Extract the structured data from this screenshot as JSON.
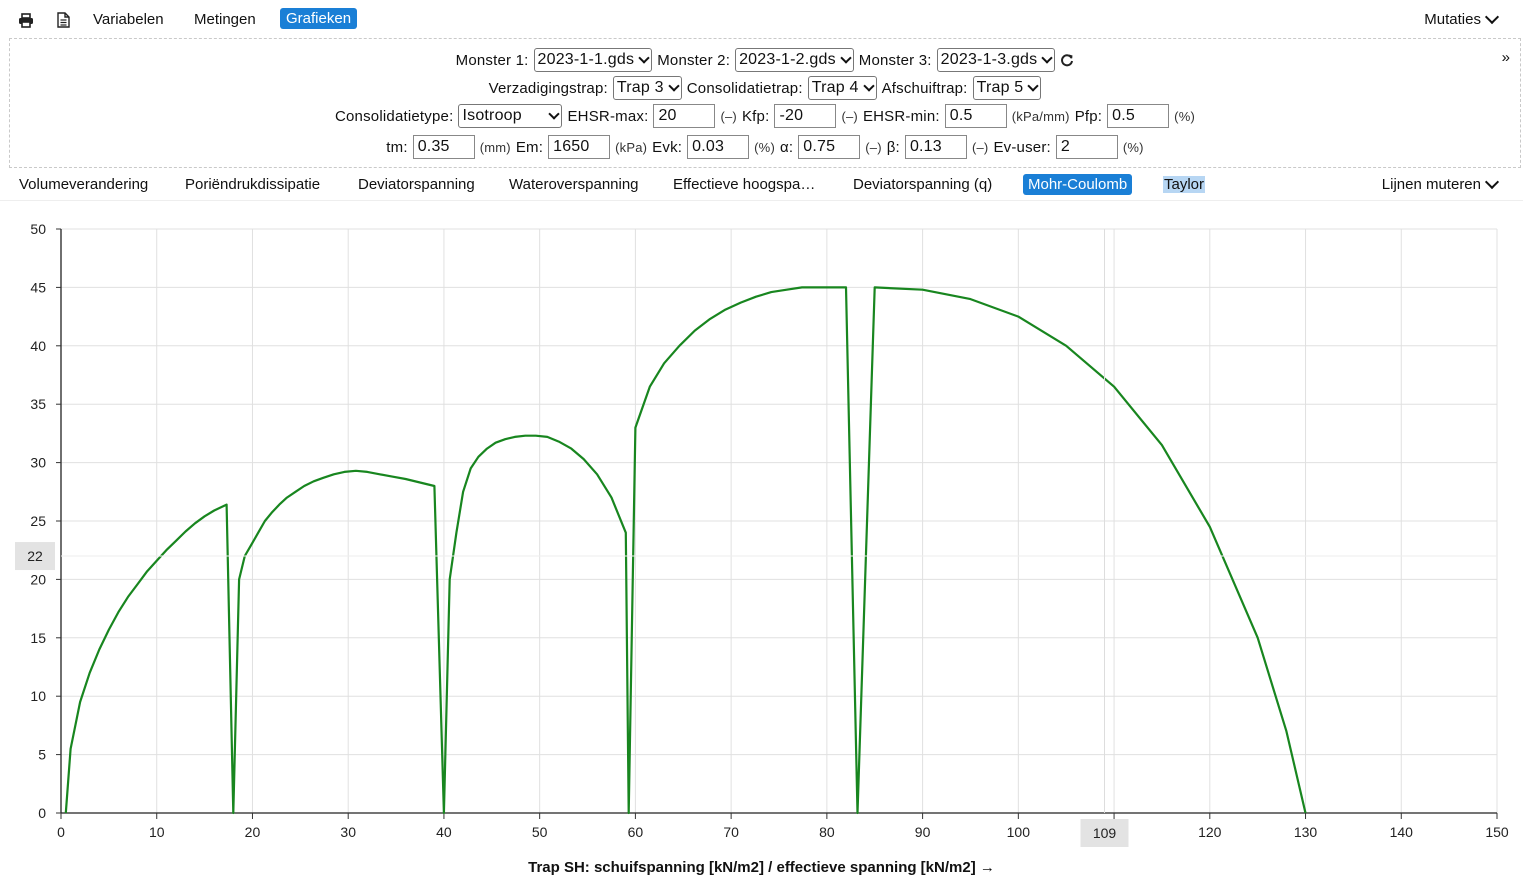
{
  "toolbar": {
    "print_icon": "printer-icon",
    "doc_icon": "document-icon",
    "links": [
      "Variabelen",
      "Metingen",
      "Grafieken"
    ],
    "active": "Grafieken",
    "mutaties": "Mutaties"
  },
  "params": {
    "monster1_label": "Monster 1:",
    "monster1": "2023-1-1.gds",
    "monster2_label": "Monster 2:",
    "monster2": "2023-1-2.gds",
    "monster3_label": "Monster 3:",
    "monster3": "2023-1-3.gds",
    "verzadiging_label": "Verzadigingstrap:",
    "verzadiging": "Trap 3",
    "consolidatie_label": "Consolidatietrap:",
    "consolidatie": "Trap 4",
    "afschuif_label": "Afschuiftrap:",
    "afschuif": "Trap 5",
    "consolidatietype_label": "Consolidatietype:",
    "consolidatietype": "Isotroop",
    "ehsrmax_label": "EHSR-max:",
    "ehsrmax": "20",
    "ehsrmax_unit": "(–)",
    "kfp_label": "Kfp:",
    "kfp": "-20",
    "kfp_unit": "(–)",
    "ehsrmin_label": "EHSR-min:",
    "ehsrmin": "0.5",
    "ehsrmin_unit": "(kPa/mm)",
    "pfp_label": "Pfp:",
    "pfp": "0.5",
    "pfp_unit": "(%)",
    "tm_label": "tm:",
    "tm": "0.35",
    "tm_unit": "(mm)",
    "em_label": "Em:",
    "em": "1650",
    "em_unit": "(kPa)",
    "evk_label": "Evk:",
    "evk": "0.03",
    "evk_unit": "(%)",
    "alpha_label": "α:",
    "alpha": "0.75",
    "alpha_unit": "(–)",
    "beta_label": "β:",
    "beta": "0.13",
    "beta_unit": "(–)",
    "evuser_label": "Ev-user:",
    "evuser": "2",
    "evuser_unit": "(%)",
    "collapse": "»"
  },
  "tabs": [
    "Volumeverandering",
    "Poriëndrukdissipatie",
    "Deviatorspanning",
    "Wateroverspanning",
    "Effectieve hoogspa…",
    "Deviatorspanning (q)",
    "Mohr-Coulomb",
    "Taylor"
  ],
  "active_tab": "Mohr-Coulomb",
  "lijnen": "Lijnen muteren",
  "colors": {
    "accent": "#1a7fd6",
    "line": "#18861f"
  },
  "chart_data": {
    "type": "line",
    "xlabel": "Trap SH: schuifspanning [kN/m2] / effectieve spanning [kN/m2] →",
    "xlim": [
      0,
      150
    ],
    "ylim": [
      0,
      50
    ],
    "xticks": [
      0,
      10,
      20,
      30,
      40,
      50,
      60,
      70,
      80,
      90,
      100,
      110,
      120,
      130,
      140,
      150
    ],
    "yticks": [
      0,
      5,
      10,
      15,
      20,
      25,
      30,
      35,
      40,
      45,
      50
    ],
    "grid": true,
    "crosshair": {
      "x": 109,
      "y": 22
    },
    "series": [
      {
        "color": "#18861f",
        "x": [
          0.5,
          1,
          2,
          3,
          4,
          5,
          6,
          7,
          8,
          9,
          10,
          11,
          12,
          13,
          14,
          15,
          16,
          17.3,
          18,
          18.6,
          19.2,
          19.9,
          20.6,
          21.3,
          22.0,
          22.8,
          23.6,
          24.5,
          25.4,
          26.4,
          27.4,
          28.5,
          29.6,
          30.8,
          32.0,
          33.3,
          34.6,
          36.0,
          37.5,
          39.0,
          40.0,
          40.6,
          41.3,
          42.0,
          42.8,
          43.6,
          44.5,
          45.4,
          46.4,
          47.4,
          48.5,
          49.6,
          50.8,
          52.0,
          53.3,
          54.6,
          56.0,
          57.5,
          59.0,
          59.3,
          60.0,
          61.5,
          63.0,
          64.6,
          66.2,
          67.8,
          69.4,
          71.0,
          72.6,
          74.2,
          75.8,
          77.4,
          79.0,
          80.6,
          82.0,
          83.2,
          85,
          90,
          95,
          100,
          105,
          110,
          115,
          120,
          125,
          128,
          130
        ],
        "y": [
          0,
          5.5,
          9.5,
          12,
          14,
          15.7,
          17.2,
          18.5,
          19.6,
          20.7,
          21.6,
          22.5,
          23.3,
          24.1,
          24.8,
          25.4,
          25.9,
          26.4,
          0,
          20,
          22,
          23,
          24,
          25,
          25.7,
          26.4,
          27,
          27.5,
          28,
          28.4,
          28.7,
          29,
          29.2,
          29.3,
          29.2,
          29,
          28.8,
          28.6,
          28.3,
          28,
          0,
          20,
          24,
          27.5,
          29.5,
          30.5,
          31.2,
          31.7,
          32,
          32.2,
          32.3,
          32.3,
          32.2,
          31.8,
          31.2,
          30.3,
          29,
          27,
          24,
          0,
          33,
          36.5,
          38.5,
          40,
          41.3,
          42.3,
          43.1,
          43.7,
          44.2,
          44.6,
          44.8,
          45,
          45,
          45,
          45,
          0,
          45,
          44.8,
          44,
          42.5,
          40,
          36.5,
          31.5,
          24.5,
          15,
          7,
          0
        ]
      }
    ]
  }
}
